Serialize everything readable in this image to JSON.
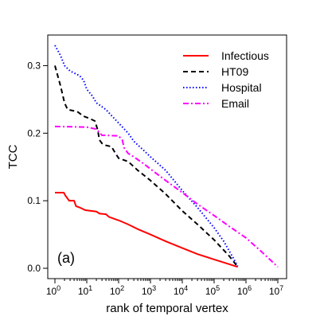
{
  "chart_data": {
    "type": "line",
    "title": "",
    "xlabel": "rank of temporal vertex",
    "ylabel": "TCC",
    "panel_label": "(a)",
    "xscale": "log",
    "xlim": [
      1,
      10000000
    ],
    "ylim": [
      0,
      0.33
    ],
    "x_ticks": [
      1,
      10,
      100,
      1000,
      10000,
      100000,
      1000000,
      10000000
    ],
    "x_tick_labels": [
      {
        "base": "10",
        "exp": "0"
      },
      {
        "base": "10",
        "exp": "1"
      },
      {
        "base": "10",
        "exp": "2"
      },
      {
        "base": "10",
        "exp": "3"
      },
      {
        "base": "10",
        "exp": "4"
      },
      {
        "base": "10",
        "exp": "5"
      },
      {
        "base": "10",
        "exp": "6"
      },
      {
        "base": "10",
        "exp": "7"
      }
    ],
    "y_ticks": [
      0.0,
      0.1,
      0.2,
      0.3
    ],
    "y_tick_labels": [
      "0.0",
      "0.1",
      "0.2",
      "0.3"
    ],
    "grid": false,
    "legend_position": "top-right",
    "series": [
      {
        "name": "Infectious",
        "color": "#ff0000",
        "style": "solid",
        "points": [
          [
            1,
            0.112
          ],
          [
            1.9,
            0.112
          ],
          [
            2.1,
            0.108
          ],
          [
            2.8,
            0.1
          ],
          [
            4,
            0.1
          ],
          [
            4.6,
            0.092
          ],
          [
            6,
            0.09
          ],
          [
            9,
            0.086
          ],
          [
            20,
            0.084
          ],
          [
            25,
            0.081
          ],
          [
            40,
            0.08
          ],
          [
            50,
            0.076
          ],
          [
            100,
            0.071
          ],
          [
            200,
            0.065
          ],
          [
            400,
            0.058
          ],
          [
            1000,
            0.05
          ],
          [
            3000,
            0.04
          ],
          [
            10000,
            0.03
          ],
          [
            30000,
            0.021
          ],
          [
            100000,
            0.013
          ],
          [
            300000,
            0.006
          ],
          [
            550000,
            0.002
          ]
        ]
      },
      {
        "name": "HT09",
        "color": "#000000",
        "style": "dashed",
        "points": [
          [
            1,
            0.3
          ],
          [
            1.5,
            0.27
          ],
          [
            2,
            0.245
          ],
          [
            2.5,
            0.235
          ],
          [
            5,
            0.232
          ],
          [
            8,
            0.225
          ],
          [
            12,
            0.222
          ],
          [
            18,
            0.218
          ],
          [
            22,
            0.205
          ],
          [
            25,
            0.19
          ],
          [
            30,
            0.185
          ],
          [
            40,
            0.182
          ],
          [
            60,
            0.18
          ],
          [
            80,
            0.17
          ],
          [
            100,
            0.163
          ],
          [
            200,
            0.158
          ],
          [
            400,
            0.145
          ],
          [
            1000,
            0.13
          ],
          [
            3000,
            0.11
          ],
          [
            10000,
            0.085
          ],
          [
            30000,
            0.065
          ],
          [
            100000,
            0.042
          ],
          [
            300000,
            0.018
          ],
          [
            550000,
            0.002
          ]
        ]
      },
      {
        "name": "Hospital",
        "color": "#0000ff",
        "style": "dotted",
        "points": [
          [
            1,
            0.33
          ],
          [
            1.5,
            0.315
          ],
          [
            2,
            0.3
          ],
          [
            3,
            0.292
          ],
          [
            6,
            0.285
          ],
          [
            8,
            0.278
          ],
          [
            10,
            0.265
          ],
          [
            15,
            0.255
          ],
          [
            20,
            0.245
          ],
          [
            40,
            0.235
          ],
          [
            60,
            0.226
          ],
          [
            100,
            0.215
          ],
          [
            200,
            0.2
          ],
          [
            300,
            0.188
          ],
          [
            600,
            0.175
          ],
          [
            1000,
            0.165
          ],
          [
            3000,
            0.145
          ],
          [
            10000,
            0.115
          ],
          [
            30000,
            0.09
          ],
          [
            100000,
            0.06
          ],
          [
            200000,
            0.04
          ],
          [
            400000,
            0.015
          ],
          [
            550000,
            0.003
          ]
        ]
      },
      {
        "name": "Email",
        "color": "#ff00ff",
        "style": "dashdot",
        "points": [
          [
            1,
            0.21
          ],
          [
            10,
            0.209
          ],
          [
            20,
            0.206
          ],
          [
            30,
            0.197
          ],
          [
            100,
            0.196
          ],
          [
            130,
            0.19
          ],
          [
            150,
            0.178
          ],
          [
            200,
            0.17
          ],
          [
            300,
            0.165
          ],
          [
            600,
            0.155
          ],
          [
            1000,
            0.147
          ],
          [
            3000,
            0.13
          ],
          [
            10000,
            0.112
          ],
          [
            30000,
            0.095
          ],
          [
            100000,
            0.078
          ],
          [
            300000,
            0.062
          ],
          [
            1000000,
            0.045
          ],
          [
            3000000,
            0.025
          ],
          [
            10000000,
            0.002
          ]
        ]
      }
    ]
  }
}
